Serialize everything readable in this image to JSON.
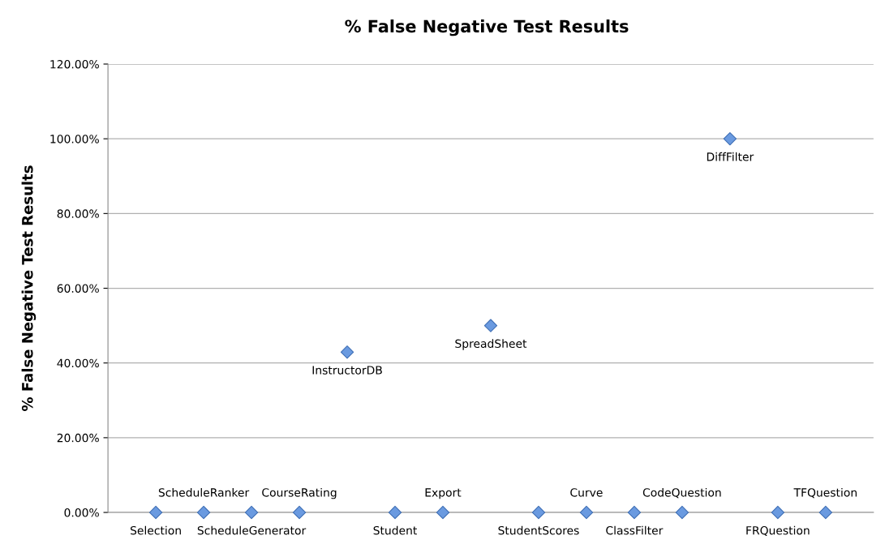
{
  "chart_data": {
    "type": "scatter",
    "title": "% False Negative Test Results",
    "ylabel": "% False Negative Test Results",
    "categories": [
      null,
      null,
      null,
      null,
      null,
      null,
      null,
      null,
      null,
      null,
      null,
      null,
      null,
      null,
      null
    ],
    "values": [
      0,
      0,
      0,
      0,
      42.9,
      0,
      0,
      50,
      0,
      0,
      0,
      0,
      100,
      0,
      0
    ],
    "color": "#6a9ae0",
    "marker": "diamond",
    "ylim": [
      0,
      120
    ],
    "yticks": [
      {
        "value": 0,
        "label": "0.00%"
      },
      {
        "value": 20,
        "label": "20.00%"
      },
      {
        "value": 40,
        "label": "40.00%"
      },
      {
        "value": 60,
        "label": "60.00%"
      },
      {
        "value": 80,
        "label": "80.00%"
      },
      {
        "value": 100,
        "label": "100.00%"
      },
      {
        "value": 120,
        "label": "120.00%"
      }
    ],
    "grid": "y",
    "tick_labels": "y",
    "annotations": [
      "Selection",
      "ScheduleRanker",
      "ScheduleGenerator",
      "CourseRating",
      "InstructorDB",
      "Student",
      "Export",
      "SpreadSheet",
      "StudentScores",
      "Curve",
      "ClassFilter",
      "CodeQuestion",
      "DiffFilter",
      "FRQuestion",
      "TFQuestion"
    ]
  }
}
